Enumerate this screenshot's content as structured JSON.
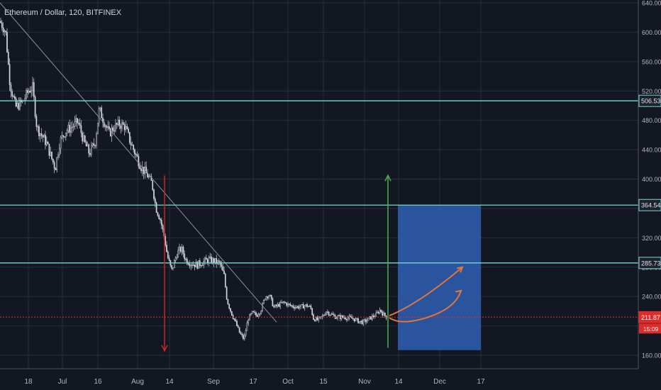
{
  "header": {
    "title": "Ethereum / Dollar, 120, BITFINEX"
  },
  "colors": {
    "background": "#131722",
    "grid": "#2a2e39",
    "text": "#b2b5be",
    "candle_up": "#d1d4dc",
    "candle_down": "#d1d4dc",
    "trendline": "#8c909a",
    "support": "#76d7d0",
    "current_price": "#e02b2b",
    "projection_box": "#2d5aa8",
    "up_arrow": "#4caf50",
    "down_arrow": "#c62828",
    "projection_curve": "#e0763a"
  },
  "chart_data": {
    "type": "candlestick",
    "x_axis": {
      "ticks": [
        "18",
        "Jul",
        "16",
        "Aug",
        "14",
        "Sep",
        "17",
        "Oct",
        "15",
        "Nov",
        "14",
        "Dec",
        "17"
      ]
    },
    "y_axis": {
      "range": [
        150,
        640
      ],
      "ticks": [
        "160.00",
        "200.00",
        "240.00",
        "280.00",
        "320.00",
        "360.00",
        "400.00",
        "440.00",
        "480.00",
        "520.00",
        "560.00",
        "600.00",
        "640.00"
      ]
    },
    "price_path": [
      [
        0,
        615
      ],
      [
        8,
        600
      ],
      [
        14,
        530
      ],
      [
        22,
        498
      ],
      [
        32,
        505
      ],
      [
        40,
        520
      ],
      [
        46,
        525
      ],
      [
        52,
        470
      ],
      [
        60,
        458
      ],
      [
        66,
        448
      ],
      [
        72,
        430
      ],
      [
        78,
        415
      ],
      [
        84,
        450
      ],
      [
        92,
        465
      ],
      [
        100,
        470
      ],
      [
        110,
        478
      ],
      [
        118,
        452
      ],
      [
        126,
        435
      ],
      [
        134,
        450
      ],
      [
        140,
        495
      ],
      [
        146,
        480
      ],
      [
        154,
        462
      ],
      [
        160,
        470
      ],
      [
        168,
        475
      ],
      [
        176,
        472
      ],
      [
        184,
        450
      ],
      [
        192,
        432
      ],
      [
        200,
        415
      ],
      [
        208,
        405
      ],
      [
        214,
        395
      ],
      [
        220,
        360
      ],
      [
        226,
        345
      ],
      [
        232,
        320
      ],
      [
        236,
        295
      ],
      [
        242,
        275
      ],
      [
        250,
        300
      ],
      [
        256,
        305
      ],
      [
        262,
        290
      ],
      [
        270,
        285
      ],
      [
        278,
        283
      ],
      [
        286,
        287
      ],
      [
        294,
        290
      ],
      [
        302,
        288
      ],
      [
        310,
        285
      ],
      [
        316,
        268
      ],
      [
        320,
        235
      ],
      [
        326,
        218
      ],
      [
        332,
        205
      ],
      [
        338,
        190
      ],
      [
        344,
        182
      ],
      [
        350,
        210
      ],
      [
        356,
        218
      ],
      [
        362,
        214
      ],
      [
        368,
        222
      ],
      [
        374,
        240
      ],
      [
        380,
        242
      ],
      [
        386,
        225
      ],
      [
        392,
        228
      ],
      [
        400,
        232
      ],
      [
        408,
        228
      ],
      [
        416,
        226
      ],
      [
        424,
        226
      ],
      [
        432,
        228
      ],
      [
        438,
        225
      ],
      [
        442,
        210
      ],
      [
        448,
        208
      ],
      [
        454,
        212
      ],
      [
        460,
        220
      ],
      [
        466,
        216
      ],
      [
        474,
        212
      ],
      [
        482,
        212
      ],
      [
        490,
        211
      ],
      [
        498,
        210
      ],
      [
        506,
        206
      ],
      [
        512,
        205
      ],
      [
        518,
        208
      ],
      [
        524,
        212
      ],
      [
        530,
        215
      ],
      [
        536,
        222
      ],
      [
        540,
        216
      ],
      [
        546,
        212
      ]
    ],
    "horizontal_levels": [
      {
        "price": 506.53,
        "label": "506.53",
        "color": "#76d7d0"
      },
      {
        "price": 364.54,
        "label": "364.54",
        "color": "#76d7d0"
      },
      {
        "price": 285.73,
        "label": "285.73",
        "color": "#76d7d0"
      },
      {
        "price": 211.87,
        "label": "211.87",
        "color": "#e02b2b",
        "countdown": "15:09"
      }
    ],
    "trendline": {
      "from": [
        0,
        640
      ],
      "to": [
        390,
        205
      ]
    },
    "projection_box": {
      "x_from": 561,
      "x_to": 678,
      "price_from": 167,
      "price_to": 364.54
    },
    "up_arrow": {
      "x": 547,
      "price_from": 170,
      "price_to": 405
    },
    "down_arrow": {
      "x": 232,
      "price_from": 405,
      "price_to": 166
    },
    "projection_curves": [
      [
        [
          549,
          214
        ],
        [
          580,
          226
        ],
        [
          615,
          250
        ],
        [
          652,
          280
        ]
      ],
      [
        [
          549,
          211
        ],
        [
          566,
          200
        ],
        [
          604,
          212
        ],
        [
          634,
          235
        ],
        [
          650,
          248
        ]
      ]
    ]
  }
}
